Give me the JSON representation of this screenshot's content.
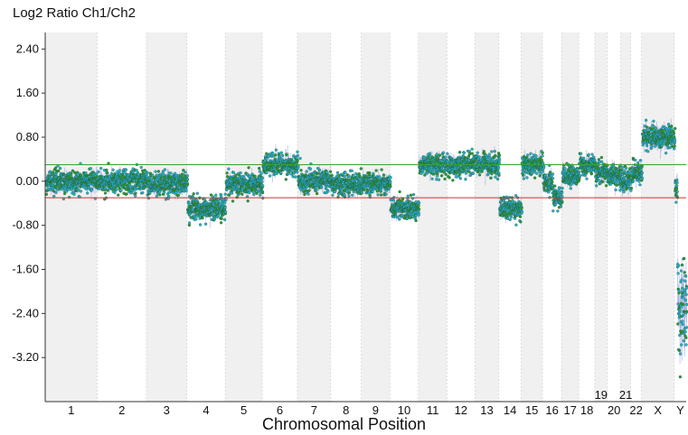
{
  "chart_data": {
    "type": "scatter",
    "title": "",
    "ylabel": "Log2 Ratio Ch1/Ch2",
    "xlabel": "Chromosomal Position",
    "ylim": [
      -4.0,
      2.7
    ],
    "y_ticks": [
      "2.40",
      "1.60",
      "0.80",
      "0.00",
      "-0.80",
      "-1.60",
      "-2.40",
      "-3.20"
    ],
    "y_tick_values": [
      2.4,
      1.6,
      0.8,
      0.0,
      -0.8,
      -1.6,
      -2.4,
      -3.2
    ],
    "grid": false,
    "threshold_lines": [
      {
        "value": 0.3,
        "color": "#3aa03a"
      },
      {
        "value": -0.3,
        "color": "#cc3333"
      }
    ],
    "point_colors": [
      "#2ab0c8",
      "#2e9a2e"
    ],
    "band_color": "#f0f0f0",
    "chromosomes": [
      {
        "label": "1",
        "size": 1.0,
        "shaded": true,
        "segments": [
          [
            0.0,
            1.0,
            0.0
          ]
        ]
      },
      {
        "label": "2",
        "size": 0.95,
        "shaded": false,
        "segments": [
          [
            0.0,
            1.0,
            0.0
          ]
        ]
      },
      {
        "label": "3",
        "size": 0.78,
        "shaded": true,
        "segments": [
          [
            0.0,
            1.0,
            -0.05
          ]
        ]
      },
      {
        "label": "4",
        "size": 0.74,
        "shaded": false,
        "segments": [
          [
            0.0,
            1.0,
            -0.5
          ]
        ]
      },
      {
        "label": "5",
        "size": 0.71,
        "shaded": true,
        "segments": [
          [
            0.0,
            1.0,
            -0.05
          ]
        ]
      },
      {
        "label": "6",
        "size": 0.68,
        "shaded": false,
        "segments": [
          [
            0.0,
            1.0,
            0.3
          ]
        ]
      },
      {
        "label": "7",
        "size": 0.64,
        "shaded": true,
        "segments": [
          [
            0.0,
            1.0,
            0.0
          ]
        ]
      },
      {
        "label": "8",
        "size": 0.59,
        "shaded": false,
        "segments": [
          [
            0.0,
            1.0,
            -0.05
          ]
        ]
      },
      {
        "label": "9",
        "size": 0.55,
        "shaded": true,
        "segments": [
          [
            0.0,
            1.0,
            -0.05
          ]
        ]
      },
      {
        "label": "10",
        "size": 0.55,
        "shaded": false,
        "segments": [
          [
            0.0,
            1.0,
            -0.5
          ]
        ]
      },
      {
        "label": "11",
        "size": 0.55,
        "shaded": true,
        "segments": [
          [
            0.0,
            1.0,
            0.3
          ]
        ]
      },
      {
        "label": "12",
        "size": 0.54,
        "shaded": false,
        "segments": [
          [
            0.0,
            1.0,
            0.3
          ]
        ]
      },
      {
        "label": "13",
        "size": 0.46,
        "shaded": true,
        "segments": [
          [
            0.0,
            1.0,
            0.3
          ]
        ]
      },
      {
        "label": "14",
        "size": 0.43,
        "shaded": false,
        "segments": [
          [
            0.0,
            1.0,
            -0.5
          ]
        ]
      },
      {
        "label": "15",
        "size": 0.41,
        "shaded": true,
        "segments": [
          [
            0.0,
            1.0,
            0.3
          ]
        ]
      },
      {
        "label": "16",
        "size": 0.37,
        "shaded": false,
        "segments": [
          [
            0.0,
            0.5,
            0.0
          ],
          [
            0.5,
            1.0,
            -0.3
          ]
        ]
      },
      {
        "label": "17",
        "size": 0.33,
        "shaded": true,
        "segments": [
          [
            0.0,
            1.0,
            0.1
          ]
        ]
      },
      {
        "label": "18",
        "size": 0.31,
        "shaded": false,
        "segments": [
          [
            0.0,
            1.0,
            0.3
          ]
        ]
      },
      {
        "label": "19",
        "size": 0.24,
        "shaded": true,
        "segments": [
          [
            0.0,
            1.0,
            0.15
          ]
        ]
      },
      {
        "label": "20",
        "size": 0.26,
        "shaded": false,
        "segments": [
          [
            0.0,
            1.0,
            0.1
          ]
        ]
      },
      {
        "label": "21",
        "size": 0.19,
        "shaded": true,
        "segments": [
          [
            0.0,
            1.0,
            0.0
          ]
        ]
      },
      {
        "label": "22",
        "size": 0.21,
        "shaded": false,
        "segments": [
          [
            0.0,
            1.0,
            0.15
          ]
        ]
      },
      {
        "label": "X",
        "size": 0.63,
        "shaded": true,
        "segments": [
          [
            0.0,
            1.0,
            0.8
          ]
        ]
      },
      {
        "label": "Y",
        "size": 0.23,
        "shaded": false,
        "segments": [
          [
            0.0,
            0.2,
            -0.1
          ],
          [
            0.2,
            1.0,
            -2.3
          ]
        ]
      }
    ]
  }
}
